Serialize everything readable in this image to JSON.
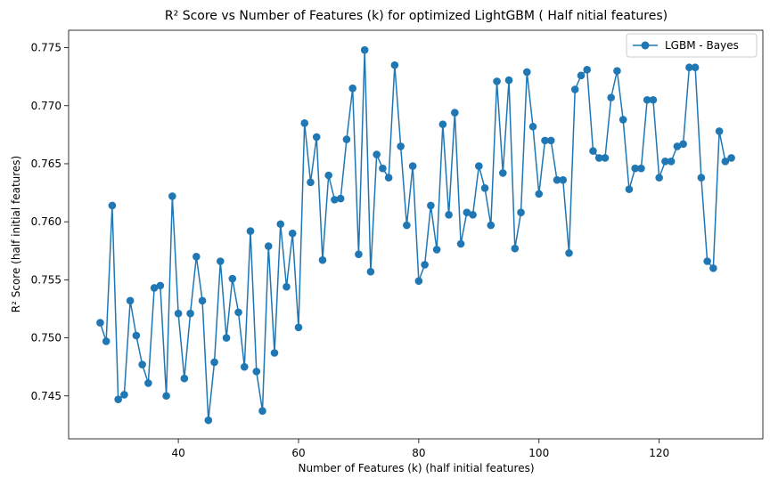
{
  "chart_data": {
    "type": "line",
    "title": "R² Score vs Number of Features (k) for optimized LightGBM ( Half nitial features)",
    "xlabel": "Number of Features (k) (half initial features)",
    "ylabel": "R² Score (half initial features)",
    "xlim": [
      21.75,
      137.25
    ],
    "ylim": [
      0.7413,
      0.7765
    ],
    "xticks": [
      40,
      60,
      80,
      100,
      120
    ],
    "yticks": [
      0.745,
      0.75,
      0.755,
      0.76,
      0.765,
      0.77,
      0.775
    ],
    "ytick_labels": [
      "0.745",
      "0.750",
      "0.755",
      "0.760",
      "0.765",
      "0.770",
      "0.775"
    ],
    "grid": false,
    "legend_position": "top-right",
    "series": [
      {
        "name": "LGBM - Bayes",
        "color": "#1f77b4",
        "x": [
          27,
          28,
          29,
          30,
          31,
          32,
          33,
          34,
          35,
          36,
          37,
          38,
          39,
          40,
          41,
          42,
          43,
          44,
          45,
          46,
          47,
          48,
          49,
          50,
          51,
          52,
          53,
          54,
          55,
          56,
          57,
          58,
          59,
          60,
          61,
          62,
          63,
          64,
          65,
          66,
          67,
          68,
          69,
          70,
          71,
          72,
          73,
          74,
          75,
          76,
          77,
          78,
          79,
          80,
          81,
          82,
          83,
          84,
          85,
          86,
          87,
          88,
          89,
          90,
          91,
          92,
          93,
          94,
          95,
          96,
          97,
          98,
          99,
          100,
          101,
          102,
          103,
          104,
          105,
          106,
          107,
          108,
          109,
          110,
          111,
          112,
          113,
          114,
          115,
          116,
          117,
          118,
          119,
          120,
          121,
          122,
          123,
          124,
          125,
          126,
          127,
          128,
          129,
          130,
          131,
          132
        ],
        "values": [
          0.7513,
          0.7497,
          0.7614,
          0.7447,
          0.7451,
          0.7532,
          0.7502,
          0.7477,
          0.7461,
          0.7543,
          0.7545,
          0.745,
          0.7622,
          0.7521,
          0.7465,
          0.7521,
          0.757,
          0.7532,
          0.7429,
          0.7479,
          0.7566,
          0.75,
          0.7551,
          0.7522,
          0.7475,
          0.7592,
          0.7471,
          0.7437,
          0.7579,
          0.7487,
          0.7598,
          0.7544,
          0.759,
          0.7509,
          0.7685,
          0.7634,
          0.7673,
          0.7567,
          0.764,
          0.7619,
          0.762,
          0.7671,
          0.7715,
          0.7572,
          0.7748,
          0.7557,
          0.7658,
          0.7646,
          0.7638,
          0.7735,
          0.7665,
          0.7597,
          0.7648,
          0.7549,
          0.7563,
          0.7614,
          0.7576,
          0.7684,
          0.7606,
          0.7694,
          0.7581,
          0.7608,
          0.7606,
          0.7648,
          0.7629,
          0.7597,
          0.7721,
          0.7642,
          0.7722,
          0.7577,
          0.7608,
          0.7729,
          0.7682,
          0.7624,
          0.767,
          0.767,
          0.7636,
          0.7636,
          0.7573,
          0.7714,
          0.7726,
          0.7731,
          0.7661,
          0.7655,
          0.7655,
          0.7707,
          0.773,
          0.7688,
          0.7628,
          0.7646,
          0.7646,
          0.7705,
          0.7705,
          0.7638,
          0.7652,
          0.7652,
          0.7665,
          0.7667,
          0.7733,
          0.7733,
          0.7638,
          0.7566,
          0.756,
          0.7678,
          0.7652,
          0.7655
        ]
      }
    ]
  }
}
